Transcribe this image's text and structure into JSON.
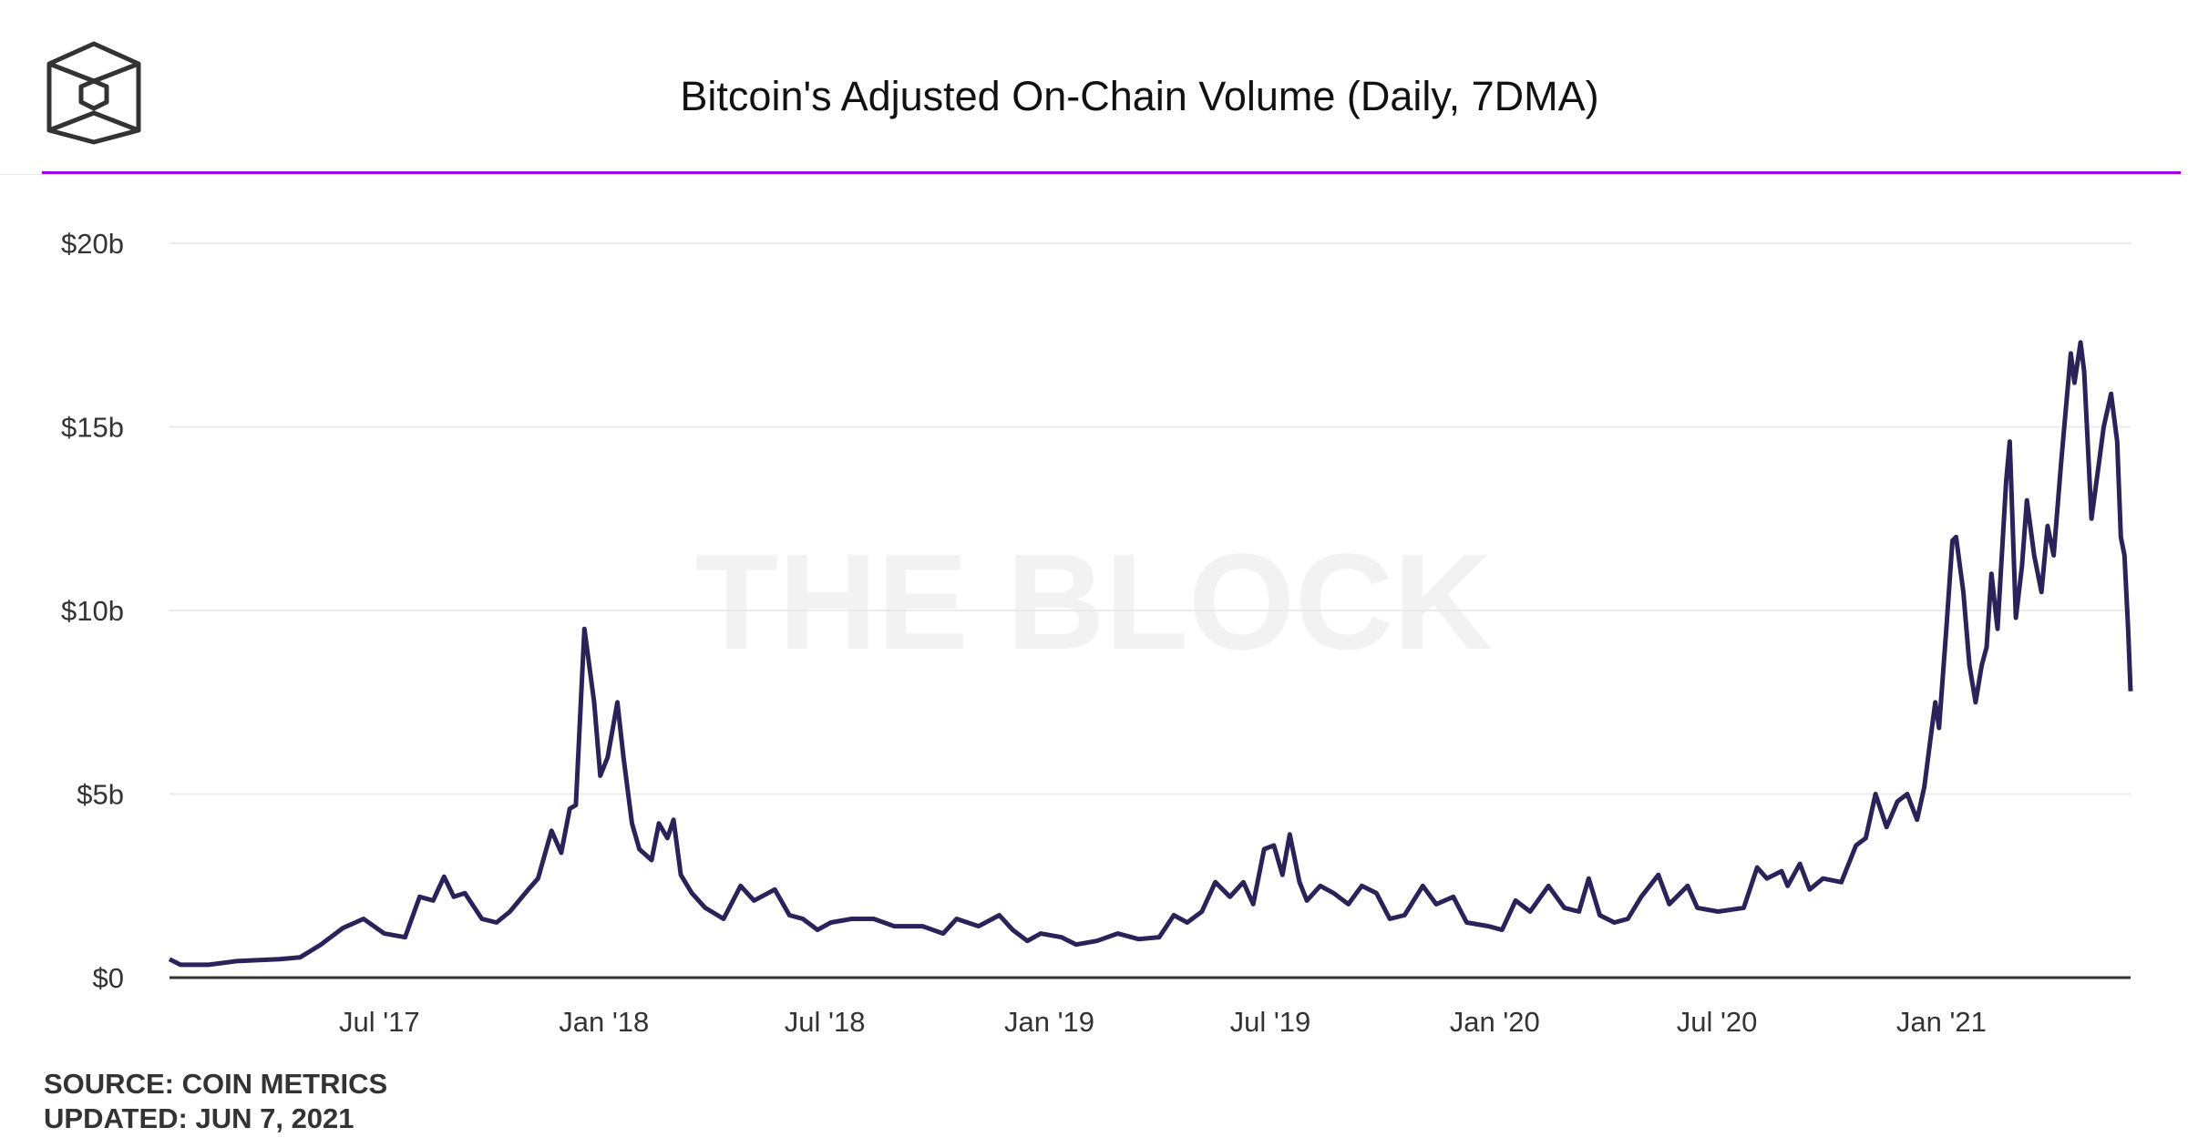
{
  "header": {
    "title": "Bitcoin's Adjusted On-Chain Volume (Daily, 7DMA)",
    "logo": "The Block cube logo",
    "accent_color": "#a100e6"
  },
  "watermark": "THE BLOCK",
  "footer": {
    "source": "SOURCE: COIN METRICS",
    "updated": "UPDATED: JUN 7, 2021"
  },
  "chart_data": {
    "type": "line",
    "title": "Bitcoin's Adjusted On-Chain Volume (Daily, 7DMA)",
    "xlabel": "",
    "ylabel": "",
    "xlim": [
      "2017-01-10",
      "2021-06-05"
    ],
    "ylim": [
      0,
      20
    ],
    "grid": true,
    "line_color": "#2a2359",
    "y_ticks": [
      {
        "value": 0,
        "label": "$0"
      },
      {
        "value": 5,
        "label": "$5b"
      },
      {
        "value": 10,
        "label": "$10b"
      },
      {
        "value": 15,
        "label": "$15b"
      },
      {
        "value": 20,
        "label": "$20b"
      }
    ],
    "x_ticks": [
      {
        "date": "2017-07-01",
        "label": "Jul '17"
      },
      {
        "date": "2018-01-01",
        "label": "Jan '18"
      },
      {
        "date": "2018-07-01",
        "label": "Jul '18"
      },
      {
        "date": "2019-01-01",
        "label": "Jan '19"
      },
      {
        "date": "2019-07-01",
        "label": "Jul '19"
      },
      {
        "date": "2020-01-01",
        "label": "Jan '20"
      },
      {
        "date": "2020-07-01",
        "label": "Jul '20"
      },
      {
        "date": "2021-01-01",
        "label": "Jan '21"
      }
    ],
    "series": [
      {
        "unit": "USD billions",
        "points": [
          [
            "2017-01-10",
            0.5
          ],
          [
            "2017-01-19",
            0.35
          ],
          [
            "2017-02-11",
            0.35
          ],
          [
            "2017-03-06",
            0.45
          ],
          [
            "2017-04-10",
            0.5
          ],
          [
            "2017-04-27",
            0.55
          ],
          [
            "2017-05-14",
            0.9
          ],
          [
            "2017-06-01",
            1.35
          ],
          [
            "2017-06-18",
            1.6
          ],
          [
            "2017-07-05",
            1.2
          ],
          [
            "2017-07-22",
            1.1
          ],
          [
            "2017-08-03",
            2.2
          ],
          [
            "2017-08-14",
            2.1
          ],
          [
            "2017-08-23",
            2.75
          ],
          [
            "2017-08-31",
            2.2
          ],
          [
            "2017-09-09",
            2.3
          ],
          [
            "2017-09-23",
            1.6
          ],
          [
            "2017-10-05",
            1.5
          ],
          [
            "2017-10-16",
            1.8
          ],
          [
            "2017-10-31",
            2.4
          ],
          [
            "2017-11-08",
            2.7
          ],
          [
            "2017-11-19",
            4.0
          ],
          [
            "2017-11-27",
            3.4
          ],
          [
            "2017-12-04",
            4.6
          ],
          [
            "2017-12-09",
            4.7
          ],
          [
            "2017-12-16",
            9.5
          ],
          [
            "2017-12-24",
            7.5
          ],
          [
            "2017-12-29",
            5.5
          ],
          [
            "2018-01-04",
            6.0
          ],
          [
            "2018-01-12",
            7.5
          ],
          [
            "2018-01-17",
            6.0
          ],
          [
            "2018-01-24",
            4.2
          ],
          [
            "2018-01-30",
            3.5
          ],
          [
            "2018-02-09",
            3.2
          ],
          [
            "2018-02-15",
            4.2
          ],
          [
            "2018-02-22",
            3.8
          ],
          [
            "2018-02-27",
            4.3
          ],
          [
            "2018-03-05",
            2.8
          ],
          [
            "2018-03-14",
            2.3
          ],
          [
            "2018-03-25",
            1.9
          ],
          [
            "2018-04-09",
            1.6
          ],
          [
            "2018-04-23",
            2.5
          ],
          [
            "2018-05-04",
            2.1
          ],
          [
            "2018-05-21",
            2.4
          ],
          [
            "2018-06-02",
            1.7
          ],
          [
            "2018-06-13",
            1.6
          ],
          [
            "2018-06-25",
            1.3
          ],
          [
            "2018-07-06",
            1.5
          ],
          [
            "2018-07-23",
            1.6
          ],
          [
            "2018-08-10",
            1.6
          ],
          [
            "2018-08-27",
            1.4
          ],
          [
            "2018-09-19",
            1.4
          ],
          [
            "2018-10-06",
            1.2
          ],
          [
            "2018-10-17",
            1.6
          ],
          [
            "2018-11-04",
            1.4
          ],
          [
            "2018-11-21",
            1.7
          ],
          [
            "2018-12-02",
            1.3
          ],
          [
            "2018-12-14",
            1.0
          ],
          [
            "2018-12-25",
            1.2
          ],
          [
            "2019-01-11",
            1.1
          ],
          [
            "2019-01-23",
            0.9
          ],
          [
            "2019-02-09",
            1.0
          ],
          [
            "2019-02-26",
            1.2
          ],
          [
            "2019-03-15",
            1.05
          ],
          [
            "2019-04-01",
            1.1
          ],
          [
            "2019-04-13",
            1.7
          ],
          [
            "2019-04-24",
            1.5
          ],
          [
            "2019-05-06",
            1.8
          ],
          [
            "2019-05-17",
            2.6
          ],
          [
            "2019-05-29",
            2.2
          ],
          [
            "2019-06-09",
            2.6
          ],
          [
            "2019-06-17",
            2.0
          ],
          [
            "2019-06-26",
            3.5
          ],
          [
            "2019-07-04",
            3.6
          ],
          [
            "2019-07-11",
            2.8
          ],
          [
            "2019-07-17",
            3.9
          ],
          [
            "2019-07-25",
            2.6
          ],
          [
            "2019-07-31",
            2.1
          ],
          [
            "2019-08-11",
            2.5
          ],
          [
            "2019-08-22",
            2.3
          ],
          [
            "2019-09-03",
            2.0
          ],
          [
            "2019-09-14",
            2.5
          ],
          [
            "2019-09-26",
            2.3
          ],
          [
            "2019-10-07",
            1.6
          ],
          [
            "2019-10-19",
            1.7
          ],
          [
            "2019-11-03",
            2.5
          ],
          [
            "2019-11-14",
            2.0
          ],
          [
            "2019-11-28",
            2.2
          ],
          [
            "2019-12-09",
            1.5
          ],
          [
            "2019-12-27",
            1.4
          ],
          [
            "2020-01-07",
            1.3
          ],
          [
            "2020-01-18",
            2.1
          ],
          [
            "2020-01-30",
            1.8
          ],
          [
            "2020-02-14",
            2.5
          ],
          [
            "2020-02-27",
            1.9
          ],
          [
            "2020-03-10",
            1.8
          ],
          [
            "2020-03-18",
            2.7
          ],
          [
            "2020-03-27",
            1.7
          ],
          [
            "2020-04-08",
            1.5
          ],
          [
            "2020-04-19",
            1.6
          ],
          [
            "2020-04-30",
            2.2
          ],
          [
            "2020-05-14",
            2.8
          ],
          [
            "2020-05-23",
            2.0
          ],
          [
            "2020-06-07",
            2.5
          ],
          [
            "2020-06-15",
            1.9
          ],
          [
            "2020-07-02",
            1.8
          ],
          [
            "2020-07-23",
            1.9
          ],
          [
            "2020-08-03",
            3.0
          ],
          [
            "2020-08-11",
            2.7
          ],
          [
            "2020-08-23",
            2.9
          ],
          [
            "2020-08-28",
            2.5
          ],
          [
            "2020-09-07",
            3.1
          ],
          [
            "2020-09-15",
            2.4
          ],
          [
            "2020-09-26",
            2.7
          ],
          [
            "2020-10-11",
            2.6
          ],
          [
            "2020-10-23",
            3.6
          ],
          [
            "2020-10-31",
            3.8
          ],
          [
            "2020-11-08",
            5.0
          ],
          [
            "2020-11-17",
            4.1
          ],
          [
            "2020-11-26",
            4.8
          ],
          [
            "2020-12-04",
            5.0
          ],
          [
            "2020-12-12",
            4.3
          ],
          [
            "2020-12-18",
            5.2
          ],
          [
            "2020-12-23",
            6.5
          ],
          [
            "2020-12-27",
            7.5
          ],
          [
            "2020-12-30",
            6.8
          ],
          [
            "2021-01-05",
            9.5
          ],
          [
            "2021-01-10",
            11.9
          ],
          [
            "2021-01-13",
            12.0
          ],
          [
            "2021-01-19",
            10.5
          ],
          [
            "2021-01-24",
            8.5
          ],
          [
            "2021-01-29",
            7.5
          ],
          [
            "2021-02-03",
            8.5
          ],
          [
            "2021-02-07",
            9.0
          ],
          [
            "2021-02-11",
            11.0
          ],
          [
            "2021-02-16",
            9.5
          ],
          [
            "2021-02-23",
            13.5
          ],
          [
            "2021-02-26",
            14.6
          ],
          [
            "2021-03-03",
            9.8
          ],
          [
            "2021-03-08",
            11.2
          ],
          [
            "2021-03-12",
            13.0
          ],
          [
            "2021-03-18",
            11.5
          ],
          [
            "2021-03-24",
            10.5
          ],
          [
            "2021-03-29",
            12.3
          ],
          [
            "2021-04-03",
            11.5
          ],
          [
            "2021-04-09",
            14.0
          ],
          [
            "2021-04-13",
            15.5
          ],
          [
            "2021-04-17",
            17.0
          ],
          [
            "2021-04-20",
            16.2
          ],
          [
            "2021-04-25",
            17.3
          ],
          [
            "2021-04-28",
            16.5
          ],
          [
            "2021-05-04",
            12.5
          ],
          [
            "2021-05-10",
            14.0
          ],
          [
            "2021-05-14",
            15.0
          ],
          [
            "2021-05-20",
            15.9
          ],
          [
            "2021-05-25",
            14.6
          ],
          [
            "2021-05-28",
            12.0
          ],
          [
            "2021-05-31",
            11.5
          ],
          [
            "2021-06-03",
            9.5
          ],
          [
            "2021-06-05",
            7.8
          ]
        ]
      }
    ]
  }
}
